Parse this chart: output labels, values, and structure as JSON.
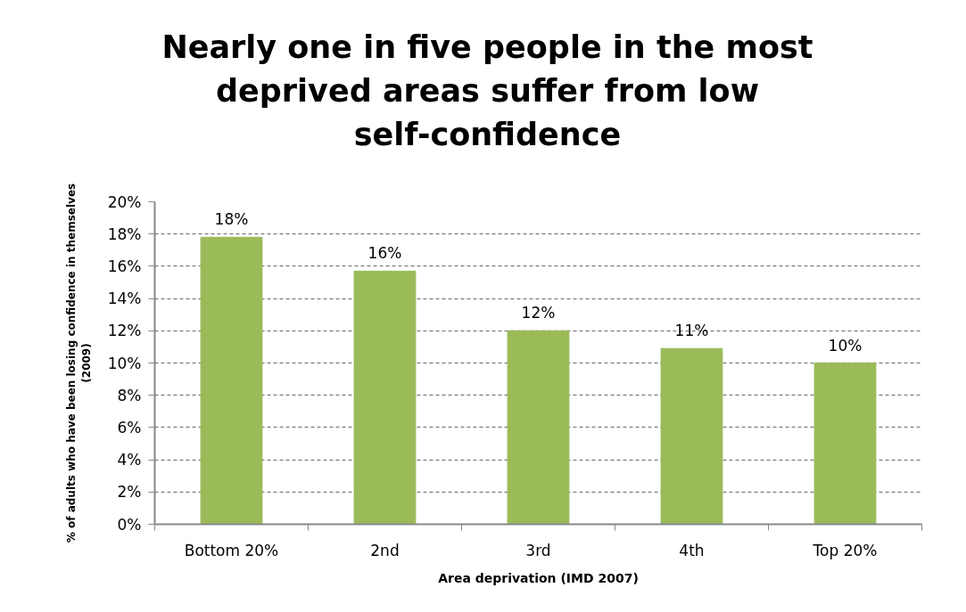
{
  "chart_data": {
    "type": "bar",
    "title": "Nearly one in five people in the most deprived areas suffer from low self-confidence",
    "xlabel": "Area deprivation (IMD 2007)",
    "ylabel": "% of adults who have been losing confidence in themselves (2009)",
    "categories": [
      "Bottom 20%",
      "2nd",
      "3rd",
      "4th",
      "Top 20%"
    ],
    "values": [
      17.8,
      15.7,
      12.0,
      10.9,
      10.0
    ],
    "value_labels": [
      "18%",
      "16%",
      "12%",
      "11%",
      "10%"
    ],
    "color": "#9bbb59",
    "ylim": [
      0,
      20
    ],
    "yticks": [
      {
        "value": 0,
        "label": "0%"
      },
      {
        "value": 2,
        "label": "2%"
      },
      {
        "value": 4,
        "label": "4%"
      },
      {
        "value": 6,
        "label": "6%"
      },
      {
        "value": 8,
        "label": "8%"
      },
      {
        "value": 10,
        "label": "10%"
      },
      {
        "value": 12,
        "label": "12%"
      },
      {
        "value": 14,
        "label": "14%"
      },
      {
        "value": 16,
        "label": "16%"
      },
      {
        "value": 18,
        "label": "18%"
      },
      {
        "value": 20,
        "label": "20%"
      }
    ],
    "grid": "y"
  }
}
